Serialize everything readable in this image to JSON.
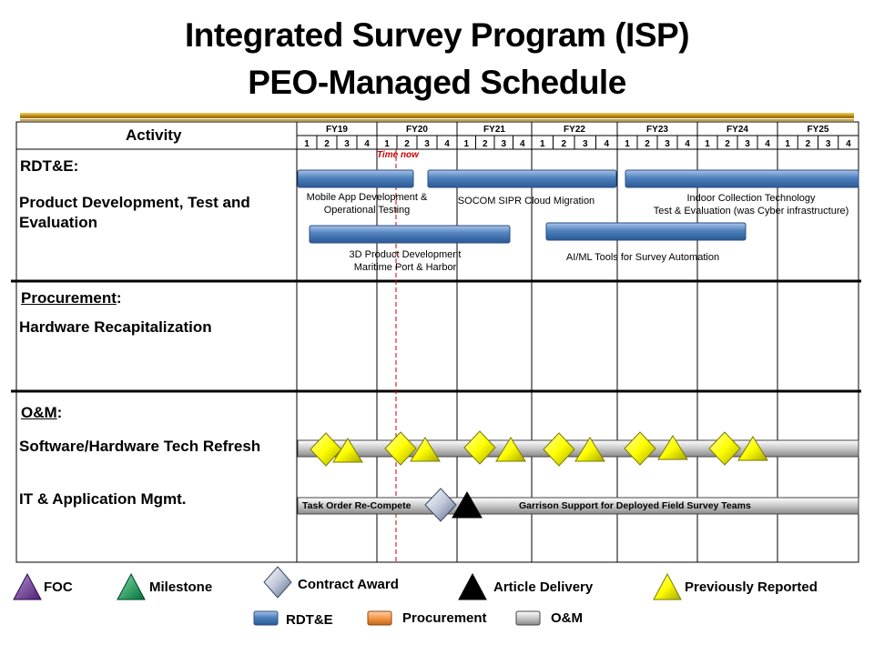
{
  "title": {
    "line1": "Integrated Survey Program (ISP)",
    "line2": "PEO-Managed Schedule"
  },
  "activity_header": "Activity",
  "fiscal_years": [
    "FY19",
    "FY20",
    "FY21",
    "FY22",
    "FY23",
    "FY24",
    "FY25"
  ],
  "quarters": [
    "1",
    "2",
    "3",
    "4"
  ],
  "time_now": "Time now",
  "sections": {
    "rdte": {
      "heading": "RDT&E",
      "suffix": ":",
      "activity": "Product Development, Test and Evaluation"
    },
    "procurement": {
      "heading": "Procurement",
      "suffix": ":",
      "activity": "Hardware Recapitalization"
    },
    "om": {
      "heading": "O&M",
      "suffix": ":",
      "activity_1": "Software/Hardware Tech Refresh",
      "activity_2": "IT & Application Mgmt."
    }
  },
  "rdte_bars": [
    {
      "label_line1": "Mobile App Development &",
      "label_line2": "Operational Testing"
    },
    {
      "label_line1": "SOCOM SIPR Cloud Migration",
      "label_line2": ""
    },
    {
      "label_line1": "Indoor Collection Technology",
      "label_line2": "Test & Evaluation (was Cyber infrastructure)"
    },
    {
      "label_line1": "3D Product Development",
      "label_line2": "Maritime Port & Harbor"
    },
    {
      "label_line1": "AI/ML  Tools for Survey Automation",
      "label_line2": ""
    }
  ],
  "om_bars": {
    "task_order": "Task Order Re-Compete",
    "garrison": "Garrison Support for Deployed Field  Survey Teams"
  },
  "legend": {
    "foc": "FOC",
    "milestone": "Milestone",
    "contract_award": "Contract Award",
    "article_delivery": "Article Delivery",
    "previously_reported": "Previously Reported",
    "rdte": "RDT&E",
    "procurement": "Procurement",
    "om": "O&M"
  },
  "colors": {
    "rdte_bar": "#4f81bd",
    "procurement_bar": "#f79646",
    "om_bar": "#bfbfbf",
    "foc": "#7030a0",
    "milestone": "#00b050",
    "previously_reported": "#ffff00",
    "article_delivery": "#000000",
    "time_now_line": "#cc0000",
    "title_rule": "#b8860b"
  }
}
